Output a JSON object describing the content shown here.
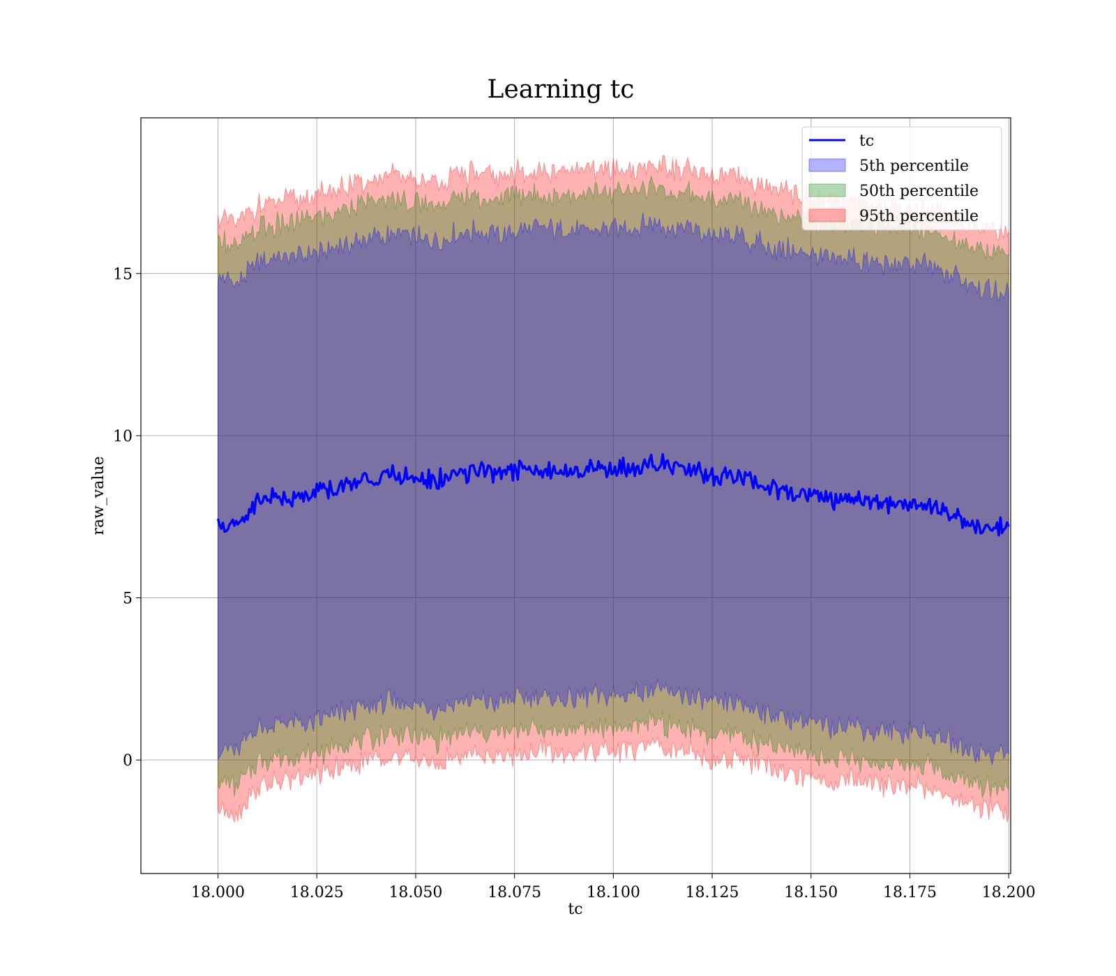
{
  "chart_data": {
    "type": "area",
    "title": "Learning tc",
    "xlabel": "tc",
    "ylabel": "raw_value",
    "xlim": [
      17.9805,
      18.2005
    ],
    "ylim": [
      -3.5,
      19.8
    ],
    "x_ticks": [
      18.0,
      18.025,
      18.05,
      18.075,
      18.1,
      18.125,
      18.15,
      18.175,
      18.2
    ],
    "x_tick_labels": [
      "18.000",
      "18.025",
      "18.050",
      "18.075",
      "18.100",
      "18.125",
      "18.150",
      "18.175",
      "18.200"
    ],
    "y_ticks": [
      0,
      5,
      10,
      15
    ],
    "y_tick_labels": [
      "0",
      "5",
      "10",
      "15"
    ],
    "grid": true,
    "legend_position": "upper right",
    "x": [
      18.0,
      18.005,
      18.01,
      18.015,
      18.02,
      18.025,
      18.03,
      18.035,
      18.04,
      18.045,
      18.05,
      18.055,
      18.06,
      18.065,
      18.07,
      18.075,
      18.08,
      18.085,
      18.09,
      18.095,
      18.1,
      18.105,
      18.11,
      18.115,
      18.12,
      18.125,
      18.13,
      18.135,
      18.14,
      18.145,
      18.15,
      18.155,
      18.16,
      18.165,
      18.17,
      18.175,
      18.18,
      18.185,
      18.19,
      18.195,
      18.2
    ],
    "line": {
      "name": "tc",
      "color": "#0000ff",
      "values": [
        7.3,
        7.2,
        8.0,
        8.1,
        8.1,
        8.2,
        8.4,
        8.6,
        8.7,
        8.8,
        8.7,
        8.6,
        8.8,
        8.9,
        8.8,
        8.9,
        9.0,
        8.9,
        8.9,
        9.0,
        9.0,
        9.0,
        9.2,
        9.0,
        9.0,
        8.7,
        8.8,
        8.6,
        8.4,
        8.3,
        8.2,
        8.0,
        8.1,
        7.9,
        7.9,
        7.9,
        7.8,
        7.6,
        7.3,
        7.2,
        7.2
      ]
    },
    "series": [
      {
        "name": "5th percentile",
        "color": "#0000ff",
        "lower": [
          0.4,
          0.3,
          1.0,
          1.1,
          1.1,
          1.2,
          1.4,
          1.6,
          1.7,
          1.8,
          1.7,
          1.6,
          1.8,
          1.9,
          1.8,
          1.9,
          2.0,
          1.9,
          1.9,
          2.0,
          2.0,
          2.0,
          2.2,
          2.0,
          2.0,
          1.7,
          1.8,
          1.6,
          1.4,
          1.3,
          1.2,
          1.0,
          1.1,
          0.9,
          0.9,
          0.9,
          0.8,
          0.6,
          0.3,
          0.2,
          0.2
        ],
        "upper": [
          14.9,
          14.7,
          15.3,
          15.5,
          15.5,
          15.6,
          15.8,
          16.0,
          16.1,
          16.2,
          16.1,
          16.0,
          16.2,
          16.3,
          16.2,
          16.3,
          16.4,
          16.3,
          16.3,
          16.4,
          16.4,
          16.4,
          16.6,
          16.4,
          16.4,
          16.1,
          16.2,
          16.0,
          15.8,
          15.7,
          15.6,
          15.4,
          15.5,
          15.3,
          15.3,
          15.3,
          15.2,
          15.0,
          14.7,
          14.5,
          14.4
        ]
      },
      {
        "name": "50th percentile",
        "color": "#008000",
        "lower": [
          -0.7,
          -0.8,
          0.0,
          0.1,
          0.1,
          0.2,
          0.4,
          0.6,
          0.7,
          0.8,
          0.7,
          0.6,
          0.8,
          0.9,
          0.8,
          0.9,
          1.0,
          0.9,
          0.9,
          1.0,
          1.0,
          1.0,
          1.2,
          1.0,
          1.0,
          0.7,
          0.8,
          0.6,
          0.4,
          0.3,
          0.2,
          0.0,
          0.1,
          -0.1,
          -0.1,
          -0.1,
          -0.2,
          -0.4,
          -0.7,
          -0.8,
          -0.9
        ],
        "upper": [
          16.1,
          15.8,
          16.4,
          16.5,
          16.6,
          16.7,
          16.9,
          17.1,
          17.2,
          17.3,
          17.2,
          17.1,
          17.3,
          17.4,
          17.3,
          17.4,
          17.5,
          17.4,
          17.4,
          17.5,
          17.5,
          17.5,
          17.7,
          17.5,
          17.5,
          17.2,
          17.3,
          17.1,
          16.9,
          16.8,
          16.7,
          16.5,
          16.6,
          16.4,
          16.4,
          16.4,
          16.3,
          16.1,
          15.8,
          15.7,
          15.6
        ]
      },
      {
        "name": "95th percentile",
        "color": "#ff0000",
        "lower": [
          -1.4,
          -1.6,
          -0.8,
          -0.7,
          -0.6,
          -0.5,
          -0.3,
          -0.1,
          0.0,
          0.1,
          0.0,
          -0.1,
          0.1,
          0.2,
          0.1,
          0.2,
          0.3,
          0.2,
          0.2,
          0.3,
          0.3,
          0.3,
          0.5,
          0.3,
          0.3,
          0.0,
          0.1,
          -0.1,
          -0.3,
          -0.4,
          -0.5,
          -0.7,
          -0.6,
          -0.8,
          -0.8,
          -0.8,
          -0.9,
          -1.1,
          -1.4,
          -1.5,
          -1.7
        ],
        "upper": [
          16.8,
          16.5,
          17.1,
          17.2,
          17.3,
          17.4,
          17.6,
          17.8,
          17.9,
          18.0,
          17.9,
          17.8,
          18.0,
          18.1,
          18.0,
          18.1,
          18.2,
          18.1,
          18.1,
          18.2,
          18.2,
          18.2,
          18.4,
          18.2,
          18.2,
          17.9,
          18.0,
          17.8,
          17.6,
          17.5,
          17.4,
          17.2,
          17.3,
          17.1,
          17.1,
          17.1,
          17.0,
          16.8,
          16.5,
          16.4,
          16.3
        ]
      }
    ]
  }
}
